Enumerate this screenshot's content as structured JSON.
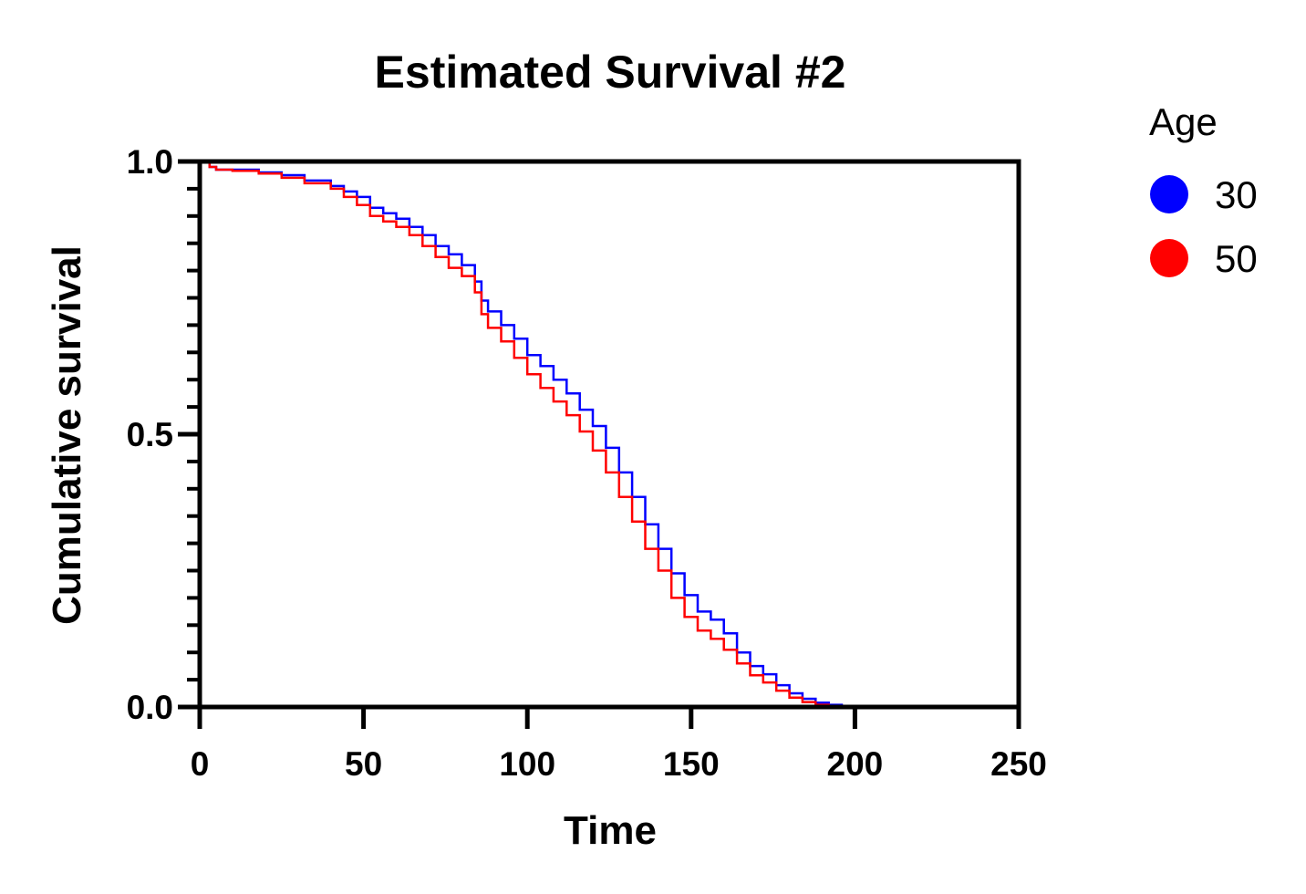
{
  "chart_data": {
    "type": "line",
    "title": "Estimated Survival #2",
    "xlabel": "Time",
    "ylabel": "Cumulative survival",
    "xlim": [
      0,
      250
    ],
    "ylim": [
      0,
      1
    ],
    "x_ticks": [
      0,
      50,
      100,
      150,
      200,
      250
    ],
    "x_tick_labels": [
      "0",
      "50",
      "100",
      "150",
      "200",
      "250"
    ],
    "y_ticks": [
      0,
      0.5,
      1
    ],
    "y_tick_labels": [
      "0.0",
      "0.5",
      "1.0"
    ],
    "y_minor_ticks": [
      0.05,
      0.1,
      0.15,
      0.2,
      0.25,
      0.3,
      0.35,
      0.4,
      0.45,
      0.55,
      0.6,
      0.65,
      0.7,
      0.75,
      0.8,
      0.85,
      0.9,
      0.95
    ],
    "grid": false,
    "legend": {
      "title": "Age",
      "placement": "right"
    },
    "series": [
      {
        "name": "30",
        "color": "#0000ff",
        "x": [
          0,
          3,
          5,
          10,
          18,
          25,
          32,
          40,
          44,
          48,
          52,
          56,
          60,
          64,
          68,
          72,
          76,
          80,
          84,
          86,
          88,
          92,
          96,
          100,
          104,
          108,
          112,
          116,
          120,
          124,
          128,
          132,
          136,
          140,
          144,
          148,
          152,
          156,
          160,
          164,
          168,
          172,
          176,
          180,
          184,
          188,
          192,
          196,
          200
        ],
        "y": [
          1.0,
          0.99,
          0.985,
          0.985,
          0.98,
          0.975,
          0.965,
          0.955,
          0.945,
          0.935,
          0.915,
          0.905,
          0.895,
          0.88,
          0.865,
          0.845,
          0.83,
          0.81,
          0.78,
          0.745,
          0.725,
          0.7,
          0.675,
          0.645,
          0.625,
          0.6,
          0.575,
          0.545,
          0.515,
          0.475,
          0.43,
          0.385,
          0.335,
          0.29,
          0.245,
          0.205,
          0.175,
          0.16,
          0.135,
          0.1,
          0.075,
          0.06,
          0.04,
          0.025,
          0.015,
          0.008,
          0.004,
          0.001,
          0.0
        ]
      },
      {
        "name": "50",
        "color": "#ff0000",
        "x": [
          0,
          3,
          5,
          10,
          18,
          25,
          32,
          40,
          44,
          48,
          52,
          56,
          60,
          64,
          68,
          72,
          76,
          80,
          84,
          86,
          88,
          92,
          96,
          100,
          104,
          108,
          112,
          116,
          120,
          124,
          128,
          132,
          136,
          140,
          144,
          148,
          152,
          156,
          160,
          164,
          168,
          172,
          176,
          180,
          184,
          188,
          192,
          196,
          200
        ],
        "y": [
          1.0,
          0.99,
          0.985,
          0.983,
          0.978,
          0.97,
          0.96,
          0.95,
          0.935,
          0.92,
          0.9,
          0.89,
          0.88,
          0.865,
          0.845,
          0.825,
          0.805,
          0.79,
          0.76,
          0.72,
          0.695,
          0.67,
          0.64,
          0.61,
          0.585,
          0.56,
          0.535,
          0.505,
          0.47,
          0.43,
          0.385,
          0.34,
          0.29,
          0.25,
          0.2,
          0.165,
          0.14,
          0.125,
          0.105,
          0.08,
          0.058,
          0.045,
          0.03,
          0.017,
          0.009,
          0.004,
          0.002,
          0.001,
          0.0
        ]
      }
    ]
  }
}
